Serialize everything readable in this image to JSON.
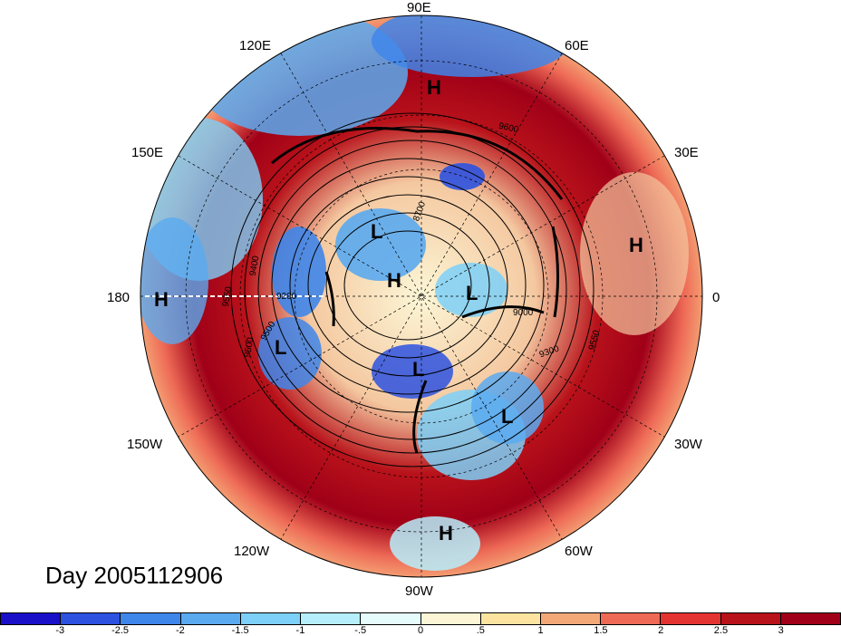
{
  "lon_labels": [
    {
      "text": "90E",
      "id": "lon-90e"
    },
    {
      "text": "60E",
      "id": "lon-60e"
    },
    {
      "text": "120E",
      "id": "lon-120e"
    },
    {
      "text": "30E",
      "id": "lon-30e"
    },
    {
      "text": "150E",
      "id": "lon-150e"
    },
    {
      "text": "180",
      "id": "lon-180"
    },
    {
      "text": "0",
      "id": "lon-0"
    },
    {
      "text": "150W",
      "id": "lon-150w"
    },
    {
      "text": "30W",
      "id": "lon-30w"
    },
    {
      "text": "120W",
      "id": "lon-120w"
    },
    {
      "text": "60W",
      "id": "lon-60w"
    },
    {
      "text": "90W",
      "id": "lon-90w"
    }
  ],
  "pressure_centers": [
    {
      "text": "H",
      "name": "high-center-90e"
    },
    {
      "text": "L",
      "name": "low-center-north-siberia"
    },
    {
      "text": "H",
      "name": "high-center-pole"
    },
    {
      "text": "L",
      "name": "low-center-greenland-sea"
    },
    {
      "text": "H",
      "name": "high-center-africa"
    },
    {
      "text": "H",
      "name": "high-center-dateline"
    },
    {
      "text": "L",
      "name": "low-center-alaska"
    },
    {
      "text": "L",
      "name": "low-center-hudson"
    },
    {
      "text": "L",
      "name": "low-center-atlantic"
    },
    {
      "text": "H",
      "name": "high-center-90w"
    }
  ],
  "contour_labels": [
    "9600",
    "8700",
    "9400",
    "9200",
    "9000",
    "9300",
    "9500",
    "9550",
    "9550",
    "9500"
  ],
  "day_label": "Day 2005112906",
  "colorbar": {
    "colors": [
      "#1a10c8",
      "#2d52e0",
      "#3f86ea",
      "#5aaaf0",
      "#7dd0f8",
      "#b6eefc",
      "#e6fcfc",
      "#fcf6d6",
      "#fce4a0",
      "#f4a878",
      "#ee6a56",
      "#e43432",
      "#b8121a",
      "#a00018"
    ],
    "ticks": [
      "-3",
      "-2.5",
      "-2",
      "-1.5",
      "-1",
      "-.5",
      "0",
      ".5",
      "1",
      "1.5",
      "2",
      "2.5",
      "3"
    ]
  }
}
